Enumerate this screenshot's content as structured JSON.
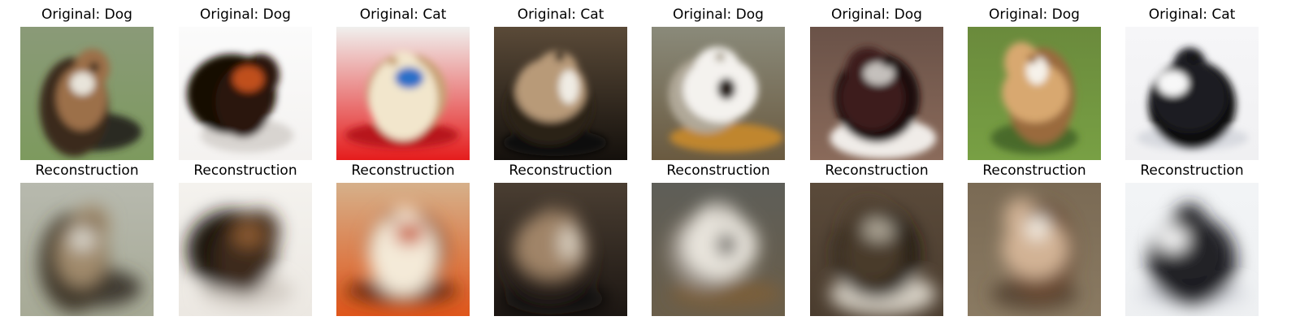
{
  "columns": [
    {
      "original_label": "Original: Dog",
      "reconstruction_label": "Reconstruction",
      "original": {
        "bg_top": "#8a9a78",
        "bg_bottom": "#7d9a5e",
        "subject": "#9c7048",
        "subject_dark": "#3a2a1c",
        "accent": "#e8e4da",
        "shadow": "#2c2a20"
      },
      "reconstruction": {
        "bg_top": "#b7b9ae",
        "bg_bottom": "#a7aa96",
        "subject": "#a08a6c",
        "subject_dark": "#40382c",
        "accent": "#d9d6cc",
        "shadow": "#403a30"
      }
    },
    {
      "original_label": "Original: Dog",
      "reconstruction_label": "Reconstruction",
      "original": {
        "bg_top": "#fbfbfb",
        "bg_bottom": "#f4f2f0",
        "subject": "#2c1410",
        "subject_dark": "#120806",
        "accent": "#c0501a",
        "shadow": "#d8d4d0"
      },
      "reconstruction": {
        "bg_top": "#f4f2ee",
        "bg_bottom": "#ece8e2",
        "subject": "#3e2a1c",
        "subject_dark": "#1c120c",
        "accent": "#8a5a32",
        "shadow": "#d4cec6"
      }
    },
    {
      "original_label": "Original: Cat",
      "reconstruction_label": "Reconstruction",
      "original": {
        "bg_top": "#f0f0ee",
        "bg_bottom": "#e51c1c",
        "subject": "#f2e6cc",
        "subject_dark": "#c8a274",
        "accent": "#2a70c8",
        "shadow": "#b8141a"
      },
      "reconstruction": {
        "bg_top": "#d6b08a",
        "bg_bottom": "#e0561a",
        "subject": "#f4ead8",
        "subject_dark": "#8a4a1c",
        "accent": "#c84c1c",
        "shadow": "#6a2c10"
      }
    },
    {
      "original_label": "Original: Cat",
      "reconstruction_label": "Reconstruction",
      "original": {
        "bg_top": "#5a4a38",
        "bg_bottom": "#14100c",
        "subject": "#b89a78",
        "subject_dark": "#2a2018",
        "accent": "#f0ece4",
        "shadow": "#0c0a08"
      },
      "reconstruction": {
        "bg_top": "#4a3e32",
        "bg_bottom": "#1c1612",
        "subject": "#a08468",
        "subject_dark": "#2a221a",
        "accent": "#d8cebe",
        "shadow": "#100c0a"
      }
    },
    {
      "original_label": "Original: Dog",
      "reconstruction_label": "Reconstruction",
      "original": {
        "bg_top": "#8a8a7a",
        "bg_bottom": "#6a5a40",
        "subject": "#f4f2ee",
        "subject_dark": "#b0a898",
        "accent": "#2c241c",
        "shadow": "#c0862e"
      },
      "reconstruction": {
        "bg_top": "#5e5e58",
        "bg_bottom": "#6a5e4a",
        "subject": "#e8e4dc",
        "subject_dark": "#9a9288",
        "accent": "#2a2620",
        "shadow": "#7a5e3a"
      }
    },
    {
      "original_label": "Original: Dog",
      "reconstruction_label": "Reconstruction",
      "original": {
        "bg_top": "#6a5248",
        "bg_bottom": "#8a6a5a",
        "subject": "#3c1c1a",
        "subject_dark": "#1a0c0c",
        "accent": "#c4c0bc",
        "shadow": "#f0ece8"
      },
      "reconstruction": {
        "bg_top": "#5a4a3a",
        "bg_bottom": "#4a3c2e",
        "subject": "#4a3a2c",
        "subject_dark": "#1c1610",
        "accent": "#b0a898",
        "shadow": "#d8d2c6"
      }
    },
    {
      "original_label": "Original: Dog",
      "reconstruction_label": "Reconstruction",
      "original": {
        "bg_top": "#6a8a3c",
        "bg_bottom": "#78a044",
        "subject": "#d8a870",
        "subject_dark": "#9a6a3c",
        "accent": "#f6f2ea",
        "shadow": "#4a6a2a"
      },
      "reconstruction": {
        "bg_top": "#7a6a54",
        "bg_bottom": "#8a7a62",
        "subject": "#d2b294",
        "subject_dark": "#6a4a30",
        "accent": "#f4eee4",
        "shadow": "#5a4a38"
      }
    },
    {
      "original_label": "Original: Cat",
      "reconstruction_label": "Reconstruction",
      "original": {
        "bg_top": "#f6f6f8",
        "bg_bottom": "#f0f0f2",
        "subject": "#1a1a20",
        "subject_dark": "#0c0c10",
        "accent": "#f8f8f8",
        "shadow": "#d8dae0"
      },
      "reconstruction": {
        "bg_top": "#f2f4f6",
        "bg_bottom": "#eef0f2",
        "subject": "#202026",
        "subject_dark": "#101014",
        "accent": "#f6f6f6",
        "shadow": "#d6d8de"
      }
    }
  ]
}
